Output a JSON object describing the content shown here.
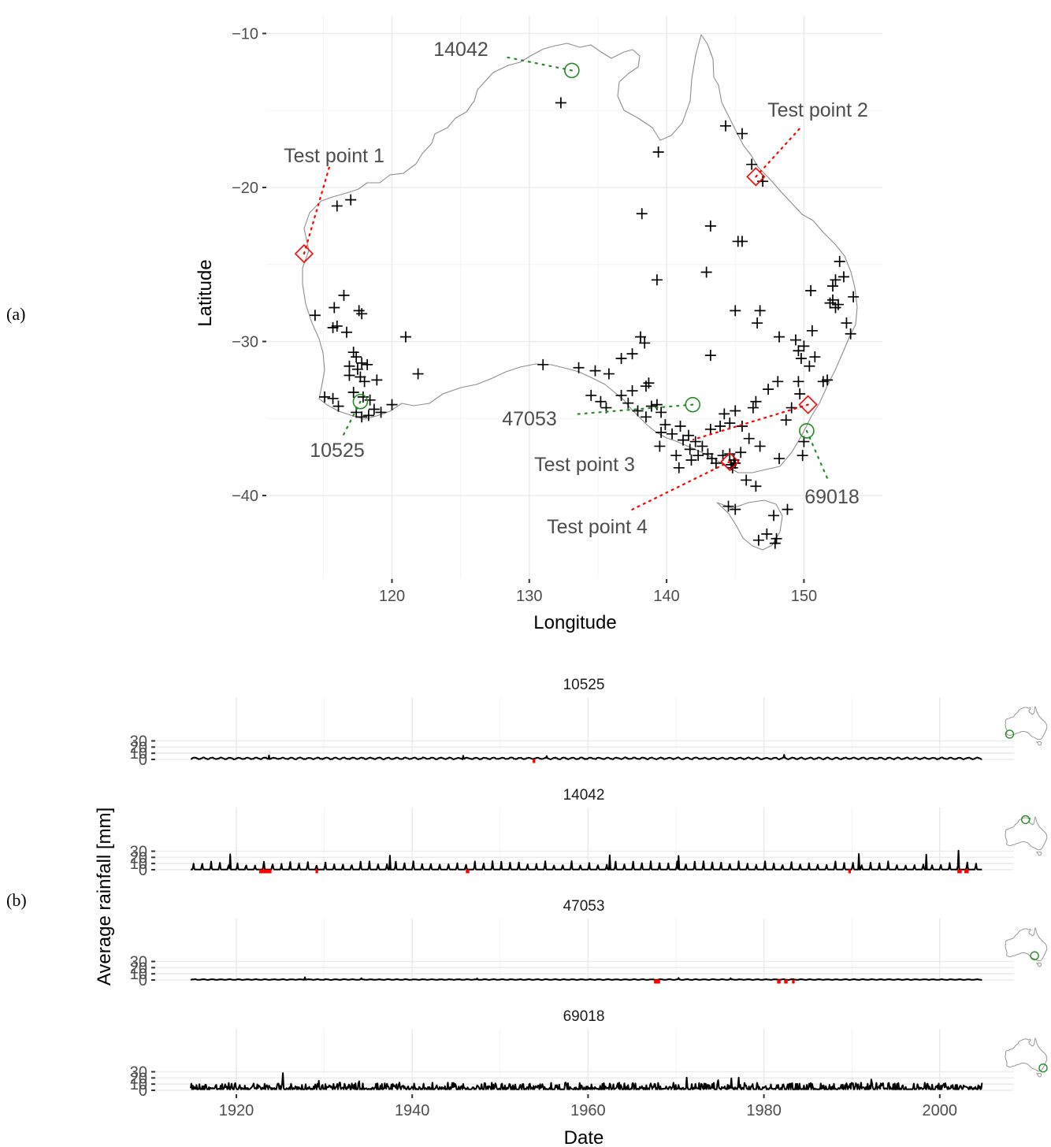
{
  "panel_a": {
    "label": "(a)",
    "xlabel": "Longitude",
    "ylabel": "Latitude",
    "xticks": [
      "120",
      "130",
      "140",
      "150"
    ],
    "yticks": [
      "−10",
      "−20",
      "−30",
      "−40"
    ]
  },
  "panel_b": {
    "label": "(b)",
    "xlabel": "Date",
    "ylabel": "Average rainfall [mm]",
    "xticks": [
      "1920",
      "1940",
      "1960",
      "1980",
      "2000"
    ],
    "yticks": [
      "30",
      "20",
      "10",
      "0"
    ]
  },
  "colors": {
    "stations": "#000000",
    "test_points": "#ff0000",
    "highlight_stations": "#228b22",
    "missing": "#ff0000",
    "coastline": "#8c8c8c"
  },
  "chart_data": [
    {
      "type": "scatter",
      "xlabel": "Longitude",
      "ylabel": "Latitude",
      "xlim": [
        111.5,
        155
      ],
      "ylim": [
        -43.5,
        -9.8
      ],
      "stations": [
        [
          132.3,
          -14.5
        ],
        [
          139.4,
          -17.7
        ],
        [
          144.3,
          -16.0
        ],
        [
          145.5,
          -16.5
        ],
        [
          146.2,
          -18.5
        ],
        [
          147.0,
          -19.6
        ],
        [
          138.2,
          -21.7
        ],
        [
          143.2,
          -22.5
        ],
        [
          145.2,
          -23.5
        ],
        [
          139.3,
          -26.0
        ],
        [
          142.9,
          -25.5
        ],
        [
          116.0,
          -21.2
        ],
        [
          117.0,
          -20.8
        ],
        [
          114.4,
          -28.3
        ],
        [
          115.8,
          -27.8
        ],
        [
          116.5,
          -27.0
        ],
        [
          117.8,
          -28.2
        ],
        [
          117.6,
          -28.0
        ],
        [
          116.0,
          -29.0
        ],
        [
          116.7,
          -29.4
        ],
        [
          115.7,
          -29.1
        ],
        [
          117.2,
          -30.7
        ],
        [
          117.4,
          -31.0
        ],
        [
          117.8,
          -31.4
        ],
        [
          116.9,
          -31.6
        ],
        [
          117.5,
          -31.8
        ],
        [
          118.2,
          -31.5
        ],
        [
          116.9,
          -32.2
        ],
        [
          117.7,
          -32.3
        ],
        [
          118.0,
          -32.6
        ],
        [
          118.9,
          -32.5
        ],
        [
          117.2,
          -33.3
        ],
        [
          117.9,
          -33.6
        ],
        [
          118.4,
          -33.8
        ],
        [
          115.1,
          -33.6
        ],
        [
          115.7,
          -33.7
        ],
        [
          116.1,
          -34.2
        ],
        [
          117.4,
          -34.6
        ],
        [
          117.8,
          -34.9
        ],
        [
          118.3,
          -34.8
        ],
        [
          118.7,
          -34.4
        ],
        [
          119.2,
          -34.6
        ],
        [
          120.0,
          -34.1
        ],
        [
          121.0,
          -29.7
        ],
        [
          121.9,
          -32.1
        ],
        [
          131.0,
          -31.5
        ],
        [
          133.6,
          -31.7
        ],
        [
          134.8,
          -31.9
        ],
        [
          135.8,
          -32.1
        ],
        [
          136.7,
          -31.1
        ],
        [
          137.5,
          -30.8
        ],
        [
          138.1,
          -29.7
        ],
        [
          138.4,
          -30.1
        ],
        [
          138.7,
          -32.7
        ],
        [
          138.5,
          -32.9
        ],
        [
          137.5,
          -33.2
        ],
        [
          136.7,
          -33.5
        ],
        [
          135.2,
          -33.9
        ],
        [
          134.5,
          -33.5
        ],
        [
          135.6,
          -34.3
        ],
        [
          137.2,
          -34.0
        ],
        [
          137.9,
          -34.5
        ],
        [
          138.5,
          -34.9
        ],
        [
          138.9,
          -34.2
        ],
        [
          139.3,
          -34.1
        ],
        [
          139.6,
          -34.6
        ],
        [
          139.9,
          -35.4
        ],
        [
          139.6,
          -35.9
        ],
        [
          140.4,
          -36.0
        ],
        [
          141.0,
          -35.5
        ],
        [
          141.2,
          -36.4
        ],
        [
          141.6,
          -36.1
        ],
        [
          142.1,
          -36.5
        ],
        [
          142.6,
          -36.8
        ],
        [
          141.7,
          -37.0
        ],
        [
          140.7,
          -37.4
        ],
        [
          141.8,
          -37.7
        ],
        [
          142.3,
          -37.4
        ],
        [
          143.0,
          -37.3
        ],
        [
          143.3,
          -37.6
        ],
        [
          143.6,
          -37.9
        ],
        [
          144.1,
          -37.4
        ],
        [
          144.6,
          -37.3
        ],
        [
          144.9,
          -37.7
        ],
        [
          145.4,
          -37.2
        ],
        [
          144.8,
          -38.2
        ],
        [
          143.2,
          -35.7
        ],
        [
          143.9,
          -35.5
        ],
        [
          144.6,
          -35.3
        ],
        [
          145.5,
          -35.5
        ],
        [
          144.2,
          -34.7
        ],
        [
          145.0,
          -34.5
        ],
        [
          146.0,
          -36.3
        ],
        [
          146.8,
          -36.8
        ],
        [
          145.8,
          -39.0
        ],
        [
          146.5,
          -39.4
        ],
        [
          148.2,
          -37.6
        ],
        [
          148.7,
          -35.1
        ],
        [
          149.9,
          -37.4
        ],
        [
          150.0,
          -36.5
        ],
        [
          148.1,
          -32.6
        ],
        [
          147.4,
          -33.1
        ],
        [
          146.3,
          -34.3
        ],
        [
          146.5,
          -33.9
        ],
        [
          143.2,
          -30.9
        ],
        [
          145.0,
          -28.0
        ],
        [
          146.6,
          -28.8
        ],
        [
          148.2,
          -29.7
        ],
        [
          145.5,
          -23.5
        ],
        [
          146.8,
          -28.0
        ],
        [
          149.4,
          -29.9
        ],
        [
          149.6,
          -30.6
        ],
        [
          150.0,
          -30.3
        ],
        [
          150.6,
          -29.3
        ],
        [
          149.8,
          -31.1
        ],
        [
          149.6,
          -32.6
        ],
        [
          149.7,
          -33.4
        ],
        [
          150.4,
          -31.6
        ],
        [
          150.8,
          -31.0
        ],
        [
          151.7,
          -32.5
        ],
        [
          151.4,
          -32.6
        ],
        [
          150.5,
          -26.7
        ],
        [
          151.9,
          -27.5
        ],
        [
          152.1,
          -27.3
        ],
        [
          152.3,
          -27.8
        ],
        [
          152.5,
          -27.6
        ],
        [
          152.1,
          -26.4
        ],
        [
          152.6,
          -24.8
        ],
        [
          152.9,
          -25.8
        ],
        [
          152.3,
          -26.0
        ],
        [
          153.1,
          -28.8
        ],
        [
          153.4,
          -29.5
        ],
        [
          153.6,
          -27.1
        ],
        [
          149.1,
          -34.3
        ],
        [
          148.8,
          -40.9
        ],
        [
          147.8,
          -41.3
        ],
        [
          147.3,
          -42.5
        ],
        [
          147.9,
          -43.1
        ],
        [
          148.0,
          -42.8
        ],
        [
          146.7,
          -42.9
        ],
        [
          144.5,
          -40.7
        ],
        [
          145.0,
          -40.9
        ],
        [
          144.7,
          -38.0
        ],
        [
          145.0,
          -37.9
        ],
        [
          139.5,
          -36.8
        ],
        [
          140.9,
          -38.2
        ]
      ],
      "test_points": [
        {
          "label": "Test point 1",
          "lon": 113.6,
          "lat": -24.3
        },
        {
          "label": "Test point 2",
          "lon": 146.5,
          "lat": -19.3
        },
        {
          "label": "Test point 3",
          "lon": 150.3,
          "lat": -34.1
        },
        {
          "label": "Test point 4",
          "lon": 144.6,
          "lat": -37.8
        }
      ],
      "highlight_stations": [
        {
          "label": "14042",
          "lon": 133.1,
          "lat": -12.4
        },
        {
          "label": "47053",
          "lon": 141.9,
          "lat": -34.1
        },
        {
          "label": "10525",
          "lon": 117.7,
          "lat": -33.9
        },
        {
          "label": "69018",
          "lon": 150.2,
          "lat": -35.8
        }
      ]
    },
    {
      "type": "line",
      "xlabel": "Date",
      "ylabel": "Average rainfall [mm]",
      "xlim": [
        1912,
        2008
      ],
      "ylim": [
        0,
        30
      ],
      "series": [
        {
          "name": "10525",
          "station_location": [
            117.7,
            -33.9
          ],
          "base": 1.2,
          "amp": 1.2,
          "peak": 0.0,
          "spike": 0.0,
          "peaks": [
            [
              1923.7,
              6.5
            ],
            [
              1945.8,
              6.0
            ],
            [
              1955.3,
              5.5
            ],
            [
              1982.3,
              7.5
            ]
          ],
          "missing": [
            [
              1953.7,
              1954.0
            ]
          ]
        },
        {
          "name": "14042",
          "station_location": [
            133.1,
            -12.4
          ],
          "base": 0.2,
          "amp": 0.0,
          "peak": 11.0,
          "spike": 0.0,
          "peaks": [
            [
              1919.3,
              25.0
            ],
            [
              1937.5,
              23.0
            ],
            [
              1962.5,
              23.5
            ],
            [
              1970.3,
              22.5
            ],
            [
              1990.8,
              25.5
            ],
            [
              1998.5,
              24.5
            ],
            [
              2002.1,
              31.0
            ]
          ],
          "missing": [
            [
              1922.6,
              1924.0
            ],
            [
              1929.0,
              1929.3
            ],
            [
              1946.1,
              1946.5
            ],
            [
              1989.6,
              1989.9
            ],
            [
              2002.0,
              2002.5
            ],
            [
              2002.8,
              2003.3
            ]
          ]
        },
        {
          "name": "47053",
          "station_location": [
            141.9,
            -34.1
          ],
          "base": 0.5,
          "amp": 0.5,
          "peak": 0.0,
          "spike": 0.0,
          "peaks": [
            [
              1927.8,
              4.5
            ],
            [
              1934.2,
              3.0
            ],
            [
              1947.4,
              2.5
            ],
            [
              1970.3,
              3.5
            ],
            [
              1976.2,
              3.0
            ]
          ],
          "missing": [
            [
              1967.5,
              1968.2
            ],
            [
              1981.5,
              1981.9
            ],
            [
              1982.3,
              1982.7
            ],
            [
              1983.2,
              1983.5
            ]
          ]
        },
        {
          "name": "69018",
          "station_location": [
            150.2,
            -35.8
          ],
          "base": 1.5,
          "amp": 0.0,
          "peak": 0.0,
          "spike": 5.0,
          "peaks": [
            [
              1925.3,
              28.0
            ],
            [
              1929.4,
              15.5
            ],
            [
              1934.0,
              14.5
            ],
            [
              1971.2,
              20.5
            ],
            [
              1974.8,
              16.5
            ],
            [
              1976.3,
              19.5
            ],
            [
              1977.1,
              20.5
            ],
            [
              1992.2,
              17.5
            ]
          ],
          "missing": []
        }
      ]
    }
  ]
}
